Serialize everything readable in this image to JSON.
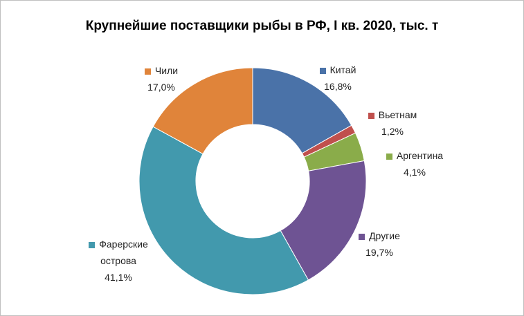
{
  "chart_data": {
    "type": "donut",
    "title": "Крупнейшие поставщики рыбы в РФ, I кв. 2020, тыс. т",
    "categories": [
      "Китай",
      "Вьетнам",
      "Аргентина",
      "Другие",
      "Фарерские острова",
      "Чили"
    ],
    "values": [
      16.8,
      1.2,
      4.1,
      19.7,
      41.1,
      17.0
    ],
    "value_labels": [
      "16,8%",
      "1,2%",
      "4,1%",
      "19,7%",
      "41,1%",
      "17,0%"
    ],
    "colors": [
      "#4a72a8",
      "#c0504d",
      "#8aac4a",
      "#6e5393",
      "#4299ad",
      "#e0843a"
    ]
  }
}
